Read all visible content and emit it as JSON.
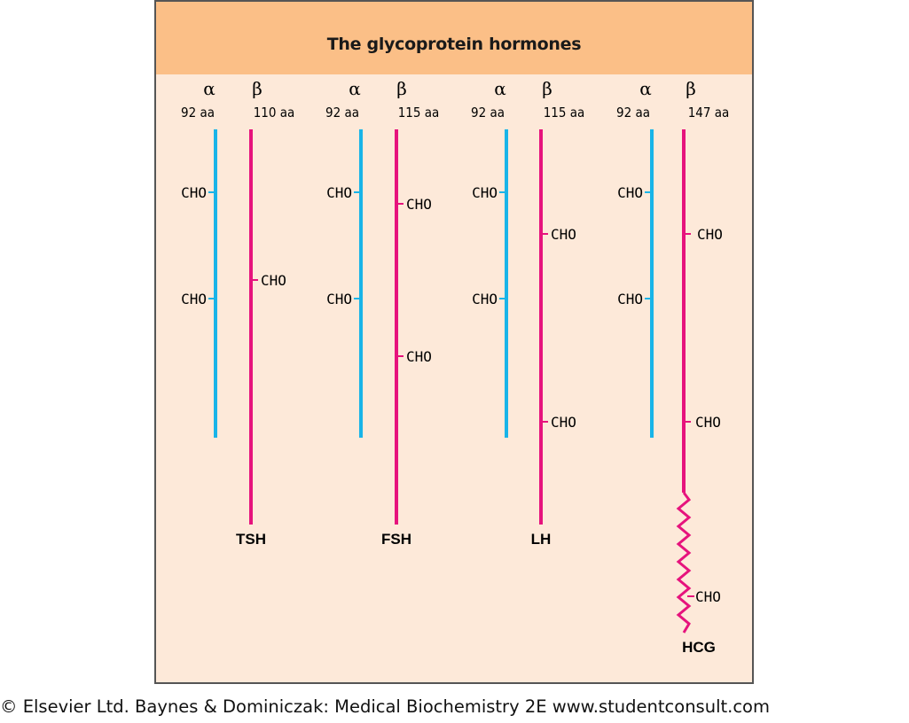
{
  "title": "The glycoprotein hormones",
  "colors": {
    "alpha": "#18b4e8",
    "beta": "#e6137d",
    "header": "#fbbf87",
    "panel": "#fde9d9"
  },
  "hormones": [
    {
      "name": "TSH",
      "alpha_symbol": "α",
      "beta_symbol": "β",
      "alpha_length": "92 aa",
      "beta_length": "110 aa",
      "cho": "CHO"
    },
    {
      "name": "FSH",
      "alpha_symbol": "α",
      "beta_symbol": "β",
      "alpha_length": "92 aa",
      "beta_length": "115 aa",
      "cho": "CHO"
    },
    {
      "name": "LH",
      "alpha_symbol": "α",
      "beta_symbol": "β",
      "alpha_length": "92 aa",
      "beta_length": "115 aa",
      "cho": "CHO"
    },
    {
      "name": "HCG",
      "alpha_symbol": "α",
      "beta_symbol": "β",
      "alpha_length": "92 aa",
      "beta_length": "147 aa",
      "cho": "CHO"
    }
  ],
  "copyright": "© Elsevier Ltd. Baynes & Dominiczak: Medical Biochemistry 2E www.studentconsult.com"
}
